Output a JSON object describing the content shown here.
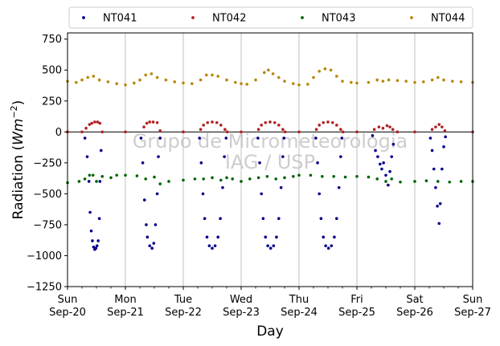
{
  "chart_data": {
    "type": "scatter",
    "xlabel": "Day",
    "ylabel_prefix": "Radiation (",
    "ylabel_unit_main": "Wm",
    "ylabel_unit_exp": "−2",
    "ylabel_suffix": ")",
    "watermark": [
      "Grupo de Micrometeorologia",
      "IAG / USP"
    ],
    "xlim": [
      0,
      7
    ],
    "ylim": [
      -1250,
      800
    ],
    "yticks": [
      {
        "v": 750,
        "label": "750"
      },
      {
        "v": 500,
        "label": "500"
      },
      {
        "v": 250,
        "label": "250"
      },
      {
        "v": 0,
        "label": "0"
      },
      {
        "v": -250,
        "label": "−250"
      },
      {
        "v": -500,
        "label": "−500"
      },
      {
        "v": -750,
        "label": "−750"
      },
      {
        "v": -1000,
        "label": "−1000"
      },
      {
        "v": -1250,
        "label": "−1250"
      }
    ],
    "xticks": [
      {
        "v": 0,
        "day": "Sun",
        "date": "Sep-20"
      },
      {
        "v": 1,
        "day": "Mon",
        "date": "Sep-21"
      },
      {
        "v": 2,
        "day": "Tue",
        "date": "Sep-22"
      },
      {
        "v": 3,
        "day": "Wed",
        "date": "Sep-23"
      },
      {
        "v": 4,
        "day": "Thu",
        "date": "Sep-24"
      },
      {
        "v": 5,
        "day": "Fri",
        "date": "Sep-25"
      },
      {
        "v": 6,
        "day": "Sat",
        "date": "Sep-26"
      },
      {
        "v": 7,
        "day": "Sun",
        "date": "Sep-27"
      }
    ],
    "grid": "vertical",
    "legend_position": "top",
    "series": [
      {
        "name": "NT041",
        "color": "#00008b",
        "points": [
          [
            0.3,
            -50
          ],
          [
            0.34,
            -200
          ],
          [
            0.37,
            -400
          ],
          [
            0.39,
            -650
          ],
          [
            0.41,
            -800
          ],
          [
            0.43,
            -880
          ],
          [
            0.45,
            -930
          ],
          [
            0.47,
            -950
          ],
          [
            0.49,
            -940
          ],
          [
            0.51,
            -920
          ],
          [
            0.53,
            -880
          ],
          [
            0.55,
            -700
          ],
          [
            0.56,
            -400
          ],
          [
            0.58,
            -150
          ],
          [
            1.27,
            -50
          ],
          [
            1.3,
            -250
          ],
          [
            1.33,
            -550
          ],
          [
            1.36,
            -750
          ],
          [
            1.38,
            -850
          ],
          [
            1.42,
            -920
          ],
          [
            1.46,
            -940
          ],
          [
            1.49,
            -900
          ],
          [
            1.52,
            -750
          ],
          [
            1.55,
            -500
          ],
          [
            1.57,
            -200
          ],
          [
            1.6,
            -50
          ],
          [
            2.28,
            -50
          ],
          [
            2.31,
            -250
          ],
          [
            2.34,
            -500
          ],
          [
            2.37,
            -700
          ],
          [
            2.41,
            -850
          ],
          [
            2.45,
            -920
          ],
          [
            2.5,
            -940
          ],
          [
            2.55,
            -920
          ],
          [
            2.6,
            -850
          ],
          [
            2.64,
            -700
          ],
          [
            2.68,
            -450
          ],
          [
            2.71,
            -200
          ],
          [
            2.74,
            -50
          ],
          [
            3.29,
            -50
          ],
          [
            3.32,
            -250
          ],
          [
            3.35,
            -500
          ],
          [
            3.38,
            -700
          ],
          [
            3.42,
            -850
          ],
          [
            3.46,
            -920
          ],
          [
            3.51,
            -940
          ],
          [
            3.56,
            -920
          ],
          [
            3.61,
            -850
          ],
          [
            3.65,
            -700
          ],
          [
            3.69,
            -450
          ],
          [
            3.72,
            -200
          ],
          [
            3.74,
            -50
          ],
          [
            4.29,
            -50
          ],
          [
            4.32,
            -250
          ],
          [
            4.35,
            -500
          ],
          [
            4.38,
            -700
          ],
          [
            4.42,
            -850
          ],
          [
            4.46,
            -920
          ],
          [
            4.51,
            -940
          ],
          [
            4.56,
            -920
          ],
          [
            4.61,
            -850
          ],
          [
            4.65,
            -700
          ],
          [
            4.69,
            -450
          ],
          [
            4.72,
            -200
          ],
          [
            4.74,
            -50
          ],
          [
            5.27,
            -30
          ],
          [
            5.32,
            -150
          ],
          [
            5.36,
            -200
          ],
          [
            5.4,
            -260
          ],
          [
            5.43,
            -300
          ],
          [
            5.46,
            -250
          ],
          [
            5.5,
            -350
          ],
          [
            5.54,
            -430
          ],
          [
            5.57,
            -320
          ],
          [
            5.6,
            -200
          ],
          [
            5.63,
            -100
          ],
          [
            6.27,
            -50
          ],
          [
            6.3,
            -150
          ],
          [
            6.33,
            -300
          ],
          [
            6.36,
            -450
          ],
          [
            6.39,
            -600
          ],
          [
            6.42,
            -740
          ],
          [
            6.44,
            -580
          ],
          [
            6.47,
            -300
          ],
          [
            6.5,
            -120
          ],
          [
            6.53,
            -40
          ]
        ]
      },
      {
        "name": "NT042",
        "color": "#b22222",
        "points": [
          [
            0,
            0
          ],
          [
            0.25,
            0
          ],
          [
            0.32,
            30
          ],
          [
            0.38,
            60
          ],
          [
            0.42,
            70
          ],
          [
            0.47,
            80
          ],
          [
            0.52,
            80
          ],
          [
            0.56,
            70
          ],
          [
            0.6,
            0
          ],
          [
            1.0,
            0
          ],
          [
            1.32,
            40
          ],
          [
            1.37,
            70
          ],
          [
            1.42,
            80
          ],
          [
            1.48,
            80
          ],
          [
            1.55,
            75
          ],
          [
            1.6,
            10
          ],
          [
            2.0,
            0
          ],
          [
            2.3,
            20
          ],
          [
            2.35,
            55
          ],
          [
            2.42,
            75
          ],
          [
            2.5,
            80
          ],
          [
            2.58,
            75
          ],
          [
            2.65,
            55
          ],
          [
            2.72,
            20
          ],
          [
            2.76,
            0
          ],
          [
            3.0,
            0
          ],
          [
            3.3,
            20
          ],
          [
            3.35,
            55
          ],
          [
            3.42,
            75
          ],
          [
            3.5,
            80
          ],
          [
            3.58,
            75
          ],
          [
            3.65,
            55
          ],
          [
            3.72,
            20
          ],
          [
            3.76,
            0
          ],
          [
            4.0,
            0
          ],
          [
            4.3,
            20
          ],
          [
            4.35,
            55
          ],
          [
            4.42,
            75
          ],
          [
            4.5,
            80
          ],
          [
            4.58,
            75
          ],
          [
            4.65,
            55
          ],
          [
            4.72,
            20
          ],
          [
            4.76,
            0
          ],
          [
            5.0,
            0
          ],
          [
            5.3,
            20
          ],
          [
            5.38,
            40
          ],
          [
            5.45,
            30
          ],
          [
            5.52,
            50
          ],
          [
            5.57,
            40
          ],
          [
            5.62,
            20
          ],
          [
            5.7,
            0
          ],
          [
            6.0,
            0
          ],
          [
            6.3,
            20
          ],
          [
            6.36,
            40
          ],
          [
            6.42,
            60
          ],
          [
            6.47,
            40
          ],
          [
            6.52,
            10
          ],
          [
            7.0,
            0
          ]
        ]
      },
      {
        "name": "NT043",
        "color": "#006400",
        "points": [
          [
            0,
            -410
          ],
          [
            0.2,
            -400
          ],
          [
            0.3,
            -380
          ],
          [
            0.38,
            -350
          ],
          [
            0.44,
            -350
          ],
          [
            0.5,
            -400
          ],
          [
            0.6,
            -360
          ],
          [
            0.75,
            -370
          ],
          [
            0.85,
            -350
          ],
          [
            1.0,
            -350
          ],
          [
            1.2,
            -355
          ],
          [
            1.35,
            -380
          ],
          [
            1.5,
            -365
          ],
          [
            1.6,
            -420
          ],
          [
            1.75,
            -400
          ],
          [
            2.0,
            -390
          ],
          [
            2.2,
            -380
          ],
          [
            2.35,
            -380
          ],
          [
            2.5,
            -370
          ],
          [
            2.65,
            -390
          ],
          [
            2.75,
            -370
          ],
          [
            2.85,
            -380
          ],
          [
            3.0,
            -400
          ],
          [
            3.15,
            -380
          ],
          [
            3.3,
            -370
          ],
          [
            3.45,
            -360
          ],
          [
            3.6,
            -380
          ],
          [
            3.75,
            -370
          ],
          [
            3.9,
            -360
          ],
          [
            4.0,
            -350
          ],
          [
            4.2,
            -350
          ],
          [
            4.4,
            -360
          ],
          [
            4.6,
            -360
          ],
          [
            4.8,
            -365
          ],
          [
            5.0,
            -360
          ],
          [
            5.2,
            -365
          ],
          [
            5.35,
            -380
          ],
          [
            5.5,
            -400
          ],
          [
            5.6,
            -380
          ],
          [
            5.75,
            -405
          ],
          [
            6.0,
            -400
          ],
          [
            6.2,
            -395
          ],
          [
            6.4,
            -400
          ],
          [
            6.6,
            -405
          ],
          [
            6.8,
            -400
          ],
          [
            7.0,
            -400
          ]
        ]
      },
      {
        "name": "NT044",
        "color": "#b8860b",
        "points": [
          [
            0,
            410
          ],
          [
            0.15,
            400
          ],
          [
            0.25,
            420
          ],
          [
            0.35,
            440
          ],
          [
            0.45,
            450
          ],
          [
            0.55,
            420
          ],
          [
            0.7,
            405
          ],
          [
            0.85,
            390
          ],
          [
            1.0,
            380
          ],
          [
            1.15,
            395
          ],
          [
            1.25,
            420
          ],
          [
            1.35,
            460
          ],
          [
            1.45,
            470
          ],
          [
            1.55,
            440
          ],
          [
            1.7,
            420
          ],
          [
            1.85,
            405
          ],
          [
            2.0,
            395
          ],
          [
            2.15,
            390
          ],
          [
            2.3,
            420
          ],
          [
            2.4,
            460
          ],
          [
            2.5,
            460
          ],
          [
            2.6,
            450
          ],
          [
            2.75,
            420
          ],
          [
            2.9,
            400
          ],
          [
            3.0,
            390
          ],
          [
            3.1,
            385
          ],
          [
            3.25,
            420
          ],
          [
            3.4,
            480
          ],
          [
            3.47,
            500
          ],
          [
            3.55,
            470
          ],
          [
            3.65,
            440
          ],
          [
            3.75,
            410
          ],
          [
            3.9,
            390
          ],
          [
            4.0,
            380
          ],
          [
            4.15,
            385
          ],
          [
            4.25,
            440
          ],
          [
            4.35,
            490
          ],
          [
            4.45,
            510
          ],
          [
            4.55,
            500
          ],
          [
            4.65,
            450
          ],
          [
            4.75,
            410
          ],
          [
            4.9,
            400
          ],
          [
            5.0,
            395
          ],
          [
            5.2,
            400
          ],
          [
            5.35,
            420
          ],
          [
            5.45,
            410
          ],
          [
            5.55,
            420
          ],
          [
            5.7,
            415
          ],
          [
            5.85,
            410
          ],
          [
            6.0,
            400
          ],
          [
            6.15,
            405
          ],
          [
            6.3,
            420
          ],
          [
            6.4,
            440
          ],
          [
            6.5,
            420
          ],
          [
            6.65,
            410
          ],
          [
            6.8,
            405
          ],
          [
            7.0,
            400
          ]
        ]
      }
    ]
  }
}
